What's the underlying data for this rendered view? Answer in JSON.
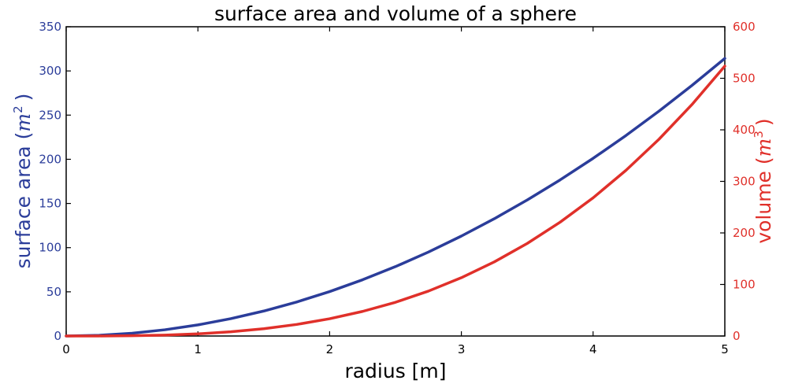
{
  "chart_data": {
    "type": "line",
    "title": "surface area and volume of a sphere",
    "xlabel": "radius [m]",
    "ylabel_left": {
      "text": "surface area (",
      "sym": "m",
      "exp": "2",
      "close": ")"
    },
    "ylabel_right": {
      "text": "volume (",
      "sym": "m",
      "exp": "3",
      "close": ")"
    },
    "xlim": [
      0,
      5
    ],
    "ylim_left": [
      0,
      350
    ],
    "ylim_right": [
      0,
      600
    ],
    "xticks": [
      "0",
      "1",
      "2",
      "3",
      "4",
      "5"
    ],
    "yticks_left": [
      "0",
      "50",
      "100",
      "150",
      "200",
      "250",
      "300",
      "350"
    ],
    "yticks_right": [
      "0",
      "100",
      "200",
      "300",
      "400",
      "500",
      "600"
    ],
    "grid": false,
    "colors": {
      "left": "#2b3d9a",
      "right": "#e0302a",
      "axis": "#000000"
    },
    "series": [
      {
        "axis": "left",
        "x": [
          0,
          0.25,
          0.5,
          0.75,
          1,
          1.25,
          1.5,
          1.75,
          2,
          2.25,
          2.5,
          2.75,
          3,
          3.25,
          3.5,
          3.75,
          4,
          4.25,
          4.5,
          4.75,
          5
        ],
        "y": [
          0,
          0.79,
          3.14,
          7.07,
          12.57,
          19.63,
          28.27,
          38.48,
          50.27,
          63.62,
          78.54,
          95.03,
          113.1,
          132.73,
          153.94,
          176.71,
          201.06,
          226.98,
          254.47,
          283.53,
          314.16
        ]
      },
      {
        "axis": "right",
        "x": [
          0,
          0.25,
          0.5,
          0.75,
          1,
          1.25,
          1.5,
          1.75,
          2,
          2.25,
          2.5,
          2.75,
          3,
          3.25,
          3.5,
          3.75,
          4,
          4.25,
          4.5,
          4.75,
          5
        ],
        "y": [
          0,
          0.07,
          0.52,
          1.77,
          4.19,
          8.18,
          14.14,
          22.45,
          33.51,
          47.71,
          65.45,
          87.11,
          113.1,
          143.79,
          179.59,
          220.89,
          268.08,
          321.56,
          381.7,
          448.92,
          523.6
        ]
      }
    ]
  }
}
